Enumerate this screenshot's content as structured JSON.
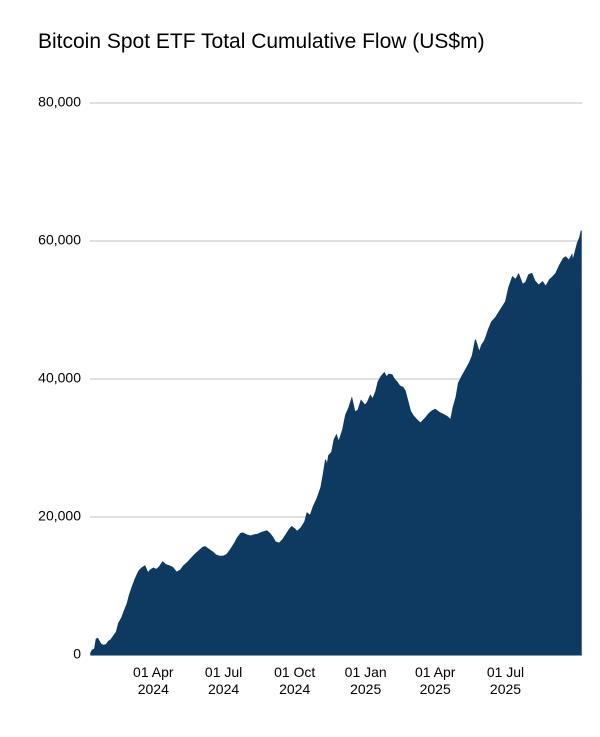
{
  "title": "Bitcoin Spot ETF Total Cumulative Flow (US$m)",
  "colors": {
    "area_fill": "#0e3a62",
    "grid_line": "#cccccc",
    "text": "#000000",
    "background": "#ffffff"
  },
  "chart_data": {
    "type": "area",
    "title": "Bitcoin Spot ETF Total Cumulative Flow (US$m)",
    "xlabel": "",
    "ylabel": "",
    "ylim": [
      0,
      80000
    ],
    "x_domain": [
      "2024-01-10",
      "2025-10-08"
    ],
    "grid": "horizontal",
    "legend": "none",
    "y_ticks": [
      {
        "value": 0,
        "label": "0"
      },
      {
        "value": 20000,
        "label": "20,000"
      },
      {
        "value": 40000,
        "label": "40,000"
      },
      {
        "value": 60000,
        "label": "60,000"
      },
      {
        "value": 80000,
        "label": "80,000"
      }
    ],
    "x_ticks": [
      {
        "date": "2024-04-01",
        "line1": "01 Apr",
        "line2": "2024"
      },
      {
        "date": "2024-07-01",
        "line1": "01 Jul",
        "line2": "2024"
      },
      {
        "date": "2024-10-01",
        "line1": "01 Oct",
        "line2": "2024"
      },
      {
        "date": "2025-01-01",
        "line1": "01 Jan",
        "line2": "2025"
      },
      {
        "date": "2025-04-01",
        "line1": "01 Apr",
        "line2": "2025"
      },
      {
        "date": "2025-07-01",
        "line1": "01 Jul",
        "line2": "2025"
      }
    ],
    "series": [
      {
        "name": "Total cumulative flow (US$m)",
        "points": [
          [
            "2024-01-11",
            300
          ],
          [
            "2024-01-13",
            700
          ],
          [
            "2024-01-16",
            900
          ],
          [
            "2024-01-18",
            2300
          ],
          [
            "2024-01-20",
            2400
          ],
          [
            "2024-01-24",
            1600
          ],
          [
            "2024-01-27",
            1400
          ],
          [
            "2024-01-31",
            1500
          ],
          [
            "2024-02-03",
            2000
          ],
          [
            "2024-02-06",
            2200
          ],
          [
            "2024-02-09",
            2700
          ],
          [
            "2024-02-13",
            3300
          ],
          [
            "2024-02-16",
            4600
          ],
          [
            "2024-02-20",
            5400
          ],
          [
            "2024-02-23",
            6300
          ],
          [
            "2024-02-27",
            7400
          ],
          [
            "2024-03-01",
            8700
          ],
          [
            "2024-03-05",
            10000
          ],
          [
            "2024-03-08",
            10900
          ],
          [
            "2024-03-12",
            11900
          ],
          [
            "2024-03-14",
            12300
          ],
          [
            "2024-03-18",
            12700
          ],
          [
            "2024-03-21",
            12900
          ],
          [
            "2024-03-25",
            11900
          ],
          [
            "2024-03-28",
            12300
          ],
          [
            "2024-04-01",
            12600
          ],
          [
            "2024-04-05",
            12400
          ],
          [
            "2024-04-09",
            12800
          ],
          [
            "2024-04-13",
            13500
          ],
          [
            "2024-04-17",
            13100
          ],
          [
            "2024-04-22",
            12900
          ],
          [
            "2024-04-26",
            12700
          ],
          [
            "2024-05-01",
            12000
          ],
          [
            "2024-05-06",
            12300
          ],
          [
            "2024-05-10",
            12900
          ],
          [
            "2024-05-15",
            13400
          ],
          [
            "2024-05-20",
            14000
          ],
          [
            "2024-05-24",
            14500
          ],
          [
            "2024-05-29",
            15000
          ],
          [
            "2024-06-04",
            15600
          ],
          [
            "2024-06-07",
            15700
          ],
          [
            "2024-06-12",
            15300
          ],
          [
            "2024-06-17",
            14900
          ],
          [
            "2024-06-21",
            14500
          ],
          [
            "2024-06-26",
            14300
          ],
          [
            "2024-07-01",
            14350
          ],
          [
            "2024-07-05",
            14550
          ],
          [
            "2024-07-10",
            15300
          ],
          [
            "2024-07-15",
            16200
          ],
          [
            "2024-07-19",
            17000
          ],
          [
            "2024-07-23",
            17600
          ],
          [
            "2024-07-26",
            17700
          ],
          [
            "2024-07-31",
            17400
          ],
          [
            "2024-08-05",
            17250
          ],
          [
            "2024-08-09",
            17400
          ],
          [
            "2024-08-14",
            17500
          ],
          [
            "2024-08-20",
            17800
          ],
          [
            "2024-08-26",
            18000
          ],
          [
            "2024-08-30",
            17600
          ],
          [
            "2024-09-03",
            17000
          ],
          [
            "2024-09-06",
            16400
          ],
          [
            "2024-09-11",
            16200
          ],
          [
            "2024-09-16",
            16800
          ],
          [
            "2024-09-20",
            17500
          ],
          [
            "2024-09-24",
            18200
          ],
          [
            "2024-09-27",
            18600
          ],
          [
            "2024-10-01",
            18300
          ],
          [
            "2024-10-04",
            17900
          ],
          [
            "2024-10-09",
            18400
          ],
          [
            "2024-10-14",
            19300
          ],
          [
            "2024-10-17",
            20600
          ],
          [
            "2024-10-21",
            20200
          ],
          [
            "2024-10-25",
            21500
          ],
          [
            "2024-10-30",
            22700
          ],
          [
            "2024-11-04",
            24300
          ],
          [
            "2024-11-07",
            26200
          ],
          [
            "2024-11-10",
            28300
          ],
          [
            "2024-11-12",
            27500
          ],
          [
            "2024-11-14",
            28900
          ],
          [
            "2024-11-18",
            29400
          ],
          [
            "2024-11-21",
            31200
          ],
          [
            "2024-11-24",
            31900
          ],
          [
            "2024-11-27",
            30900
          ],
          [
            "2024-12-02",
            32600
          ],
          [
            "2024-12-06",
            34800
          ],
          [
            "2024-12-10",
            35800
          ],
          [
            "2024-12-14",
            37200
          ],
          [
            "2024-12-18",
            35200
          ],
          [
            "2024-12-22",
            35500
          ],
          [
            "2024-12-26",
            36900
          ],
          [
            "2024-12-31",
            36200
          ],
          [
            "2025-01-03",
            36600
          ],
          [
            "2025-01-07",
            37600
          ],
          [
            "2025-01-10",
            37100
          ],
          [
            "2025-01-14",
            38200
          ],
          [
            "2025-01-17",
            39600
          ],
          [
            "2025-01-21",
            40400
          ],
          [
            "2025-01-25",
            40900
          ],
          [
            "2025-01-28",
            40300
          ],
          [
            "2025-01-31",
            40700
          ],
          [
            "2025-02-04",
            40600
          ],
          [
            "2025-02-07",
            40000
          ],
          [
            "2025-02-11",
            39500
          ],
          [
            "2025-02-14",
            39000
          ],
          [
            "2025-02-18",
            38800
          ],
          [
            "2025-02-21",
            38300
          ],
          [
            "2025-02-25",
            36600
          ],
          [
            "2025-02-28",
            35300
          ],
          [
            "2025-03-04",
            34600
          ],
          [
            "2025-03-09",
            34000
          ],
          [
            "2025-03-13",
            33600
          ],
          [
            "2025-03-18",
            34200
          ],
          [
            "2025-03-24",
            35000
          ],
          [
            "2025-03-28",
            35400
          ],
          [
            "2025-04-01",
            35600
          ],
          [
            "2025-04-07",
            35100
          ],
          [
            "2025-04-11",
            34900
          ],
          [
            "2025-04-16",
            34600
          ],
          [
            "2025-04-21",
            34100
          ],
          [
            "2025-04-24",
            35800
          ],
          [
            "2025-04-28",
            37400
          ],
          [
            "2025-05-01",
            39400
          ],
          [
            "2025-05-05",
            40300
          ],
          [
            "2025-05-09",
            41100
          ],
          [
            "2025-05-12",
            41700
          ],
          [
            "2025-05-15",
            42300
          ],
          [
            "2025-05-19",
            43400
          ],
          [
            "2025-05-23",
            45700
          ],
          [
            "2025-05-28",
            43900
          ],
          [
            "2025-05-31",
            44900
          ],
          [
            "2025-06-04",
            45600
          ],
          [
            "2025-06-09",
            47200
          ],
          [
            "2025-06-13",
            48300
          ],
          [
            "2025-06-18",
            48900
          ],
          [
            "2025-06-23",
            49800
          ],
          [
            "2025-06-27",
            50500
          ],
          [
            "2025-07-01",
            51200
          ],
          [
            "2025-07-05",
            53200
          ],
          [
            "2025-07-10",
            54800
          ],
          [
            "2025-07-14",
            54400
          ],
          [
            "2025-07-18",
            55200
          ],
          [
            "2025-07-23",
            53700
          ],
          [
            "2025-07-27",
            54000
          ],
          [
            "2025-07-31",
            55100
          ],
          [
            "2025-08-04",
            55300
          ],
          [
            "2025-08-08",
            54200
          ],
          [
            "2025-08-13",
            53600
          ],
          [
            "2025-08-18",
            54100
          ],
          [
            "2025-08-22",
            53400
          ],
          [
            "2025-08-27",
            54400
          ],
          [
            "2025-08-31",
            54800
          ],
          [
            "2025-09-04",
            55300
          ],
          [
            "2025-09-09",
            56500
          ],
          [
            "2025-09-14",
            57500
          ],
          [
            "2025-09-17",
            57700
          ],
          [
            "2025-09-21",
            57200
          ],
          [
            "2025-09-25",
            58000
          ],
          [
            "2025-09-26",
            57100
          ],
          [
            "2025-09-30",
            58800
          ],
          [
            "2025-10-02",
            59700
          ],
          [
            "2025-10-05",
            60500
          ],
          [
            "2025-10-07",
            61500
          ]
        ]
      }
    ]
  }
}
